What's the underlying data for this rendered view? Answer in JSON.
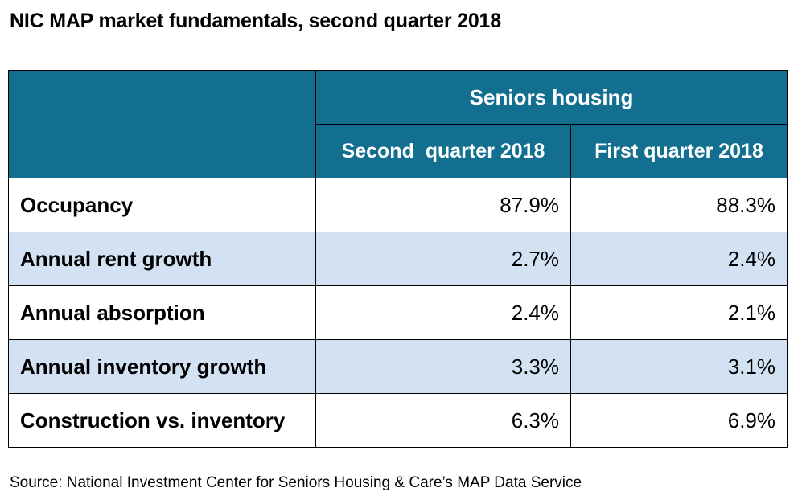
{
  "title": "NIC MAP market fundamentals, second quarter 2018",
  "source": "Source: National Investment Center for Seniors Housing & Care’s MAP Data Service",
  "colors": {
    "header_bg": "#136f90",
    "header_text": "#ffffff",
    "alt_row_bg": "#d2e2f2",
    "row_bg": "#ffffff"
  },
  "chart_data": {
    "type": "table",
    "group_header": "Seniors housing",
    "columns": [
      "Second  quarter 2018",
      "First quarter 2018"
    ],
    "rows": [
      {
        "label": "Occupancy",
        "values": [
          "87.9%",
          "88.3%"
        ]
      },
      {
        "label": "Annual rent growth",
        "values": [
          "2.7%",
          "2.4%"
        ]
      },
      {
        "label": "Annual absorption",
        "values": [
          "2.4%",
          "2.1%"
        ]
      },
      {
        "label": "Annual inventory growth",
        "values": [
          "3.3%",
          "3.1%"
        ]
      },
      {
        "label": "Construction vs. inventory",
        "values": [
          "6.3%",
          "6.9%"
        ]
      }
    ]
  }
}
